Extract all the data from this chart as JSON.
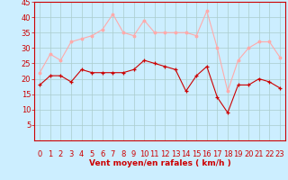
{
  "hours": [
    0,
    1,
    2,
    3,
    4,
    5,
    6,
    7,
    8,
    9,
    10,
    11,
    12,
    13,
    14,
    15,
    16,
    17,
    18,
    19,
    20,
    21,
    22,
    23
  ],
  "wind_avg": [
    18,
    21,
    21,
    19,
    23,
    22,
    22,
    22,
    22,
    23,
    26,
    25,
    24,
    23,
    16,
    21,
    24,
    14,
    9,
    18,
    18,
    20,
    19,
    17
  ],
  "wind_gust": [
    22,
    28,
    26,
    32,
    33,
    34,
    36,
    41,
    35,
    34,
    39,
    35,
    35,
    35,
    35,
    34,
    42,
    30,
    16,
    26,
    30,
    32,
    32,
    27
  ],
  "avg_color": "#cc0000",
  "gust_color": "#ffaaaa",
  "bg_color": "#cceeff",
  "grid_color": "#aacccc",
  "xlabel": "Vent moyen/en rafales ( km/h )",
  "ylim": [
    0,
    45
  ],
  "yticks": [
    5,
    10,
    15,
    20,
    25,
    30,
    35,
    40,
    45
  ],
  "xlabel_fontsize": 6.5,
  "tick_fontsize": 6.0,
  "wind_dir_angles": [
    -45,
    -40,
    -40,
    -45,
    -40,
    -45,
    -40,
    -30,
    -40,
    -40,
    -45,
    -40,
    -45,
    -40,
    0,
    10,
    20,
    30,
    20,
    -50,
    -45,
    -45,
    -40,
    -35
  ]
}
